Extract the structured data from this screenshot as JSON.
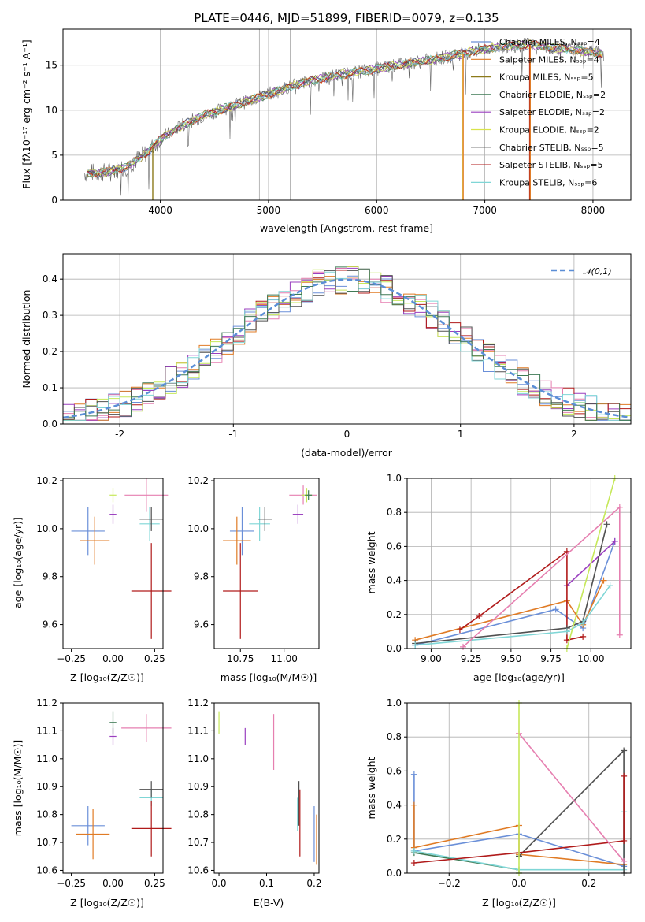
{
  "title": "PLATE=0446, MJD=51899, FIBERID=0079, z=0.135",
  "colors": {
    "Chabrier MILES": "#6a8fd8",
    "Salpeter MILES": "#e07b25",
    "Kroupa MILES": "#8c7a1a",
    "Chabrier ELODIE": "#3f7a55",
    "Salpeter ELODIE": "#9a3fbf",
    "Kroupa ELODIE": "#d9e34a",
    "Chabrier STELIB": "#505050",
    "Salpeter STELIB": "#b01a1a",
    "Kroupa STELIB": "#7fd6d6",
    "pink": "#e67fb0",
    "lime": "#c6e85a"
  },
  "chart_data": [
    {
      "type": "line",
      "id": "spectrum",
      "xlabel": "wavelength [Angstrom, rest frame]",
      "ylabel": "Flux [fλ10⁻¹⁷ erg cm⁻² s⁻¹ A⁻¹]",
      "xlim": [
        3100,
        8350
      ],
      "ylim": [
        0,
        19
      ],
      "xticks": [
        4000,
        5000,
        6000,
        7000,
        8000
      ],
      "yticks": [
        0,
        5,
        10,
        15
      ],
      "grid": true,
      "legend_position": "right",
      "series": [
        {
          "name": "Chabrier MILES, N_SSP=4",
          "color": "#6a8fd8"
        },
        {
          "name": "Salpeter MILES, N_SSP=4",
          "color": "#e07b25"
        },
        {
          "name": "Kroupa MILES, N_SSP=5",
          "color": "#8c7a1a"
        },
        {
          "name": "Chabrier ELODIE, N_SSP=2",
          "color": "#3f7a55"
        },
        {
          "name": "Salpeter ELODIE, N_SSP=2",
          "color": "#9a3fbf"
        },
        {
          "name": "Kroupa ELODIE, N_SSP=2",
          "color": "#d9e34a"
        },
        {
          "name": "Chabrier STELIB, N_SSP=5",
          "color": "#505050"
        },
        {
          "name": "Salpeter STELIB, N_SSP=5",
          "color": "#b01a1a"
        },
        {
          "name": "Kroupa STELIB, N_SSP=6",
          "color": "#7fd6d6"
        }
      ],
      "continuum": {
        "x": [
          3300,
          3500,
          3700,
          3900,
          4000,
          4200,
          4400,
          4600,
          4800,
          5000,
          5200,
          5400,
          5600,
          5800,
          6000,
          6200,
          6400,
          6600,
          6800,
          7000,
          7200,
          7400,
          7600,
          7800,
          8000,
          8100
        ],
        "y": [
          3.0,
          3.1,
          3.8,
          5.5,
          6.8,
          8.3,
          9.4,
          10.2,
          11.0,
          11.8,
          12.6,
          13.3,
          13.8,
          14.2,
          14.6,
          15.0,
          15.4,
          15.8,
          16.3,
          16.8,
          17.1,
          17.3,
          17.0,
          16.7,
          16.5,
          16.2
        ]
      }
    },
    {
      "type": "area",
      "id": "residuals",
      "xlabel": "(data-model)/error",
      "ylabel": "Normed distribution",
      "xlim": [
        -2.5,
        2.5
      ],
      "ylim": [
        0,
        0.47
      ],
      "xticks": [
        -2,
        -1,
        0,
        1,
        2
      ],
      "yticks": [
        0.0,
        0.1,
        0.2,
        0.3,
        0.4
      ],
      "grid": true,
      "legend": "𝒩(0,1)",
      "legend_position": "top-right"
    },
    {
      "type": "scatter",
      "id": "age-vs-Z",
      "xlabel": "Z [log₁₀(Z/Z☉)]",
      "ylabel": "age  [log₁₀(age/yr)]",
      "xlim": [
        -0.3,
        0.3
      ],
      "ylim": [
        9.5,
        10.21
      ],
      "xticks": [
        -0.25,
        0.0,
        0.25
      ],
      "xticklabels": [
        "−0.25",
        "0.00",
        "0.25"
      ],
      "yticks": [
        9.6,
        9.8,
        10.0,
        10.2
      ],
      "points": [
        {
          "x": -0.15,
          "y": 9.99,
          "xe": 0.1,
          "ye": 0.1,
          "color": "#6a8fd8"
        },
        {
          "x": -0.11,
          "y": 9.95,
          "xe": 0.09,
          "ye": 0.1,
          "color": "#e07b25"
        },
        {
          "x": 0.0,
          "y": 10.06,
          "xe": 0.02,
          "ye": 0.04,
          "color": "#9a3fbf"
        },
        {
          "x": 0.0,
          "y": 10.14,
          "xe": 0.02,
          "ye": 0.03,
          "color": "#c6e85a"
        },
        {
          "x": 0.22,
          "y": 10.02,
          "xe": 0.06,
          "ye": 0.07,
          "color": "#7fd6d6"
        },
        {
          "x": 0.23,
          "y": 10.04,
          "xe": 0.07,
          "ye": 0.05,
          "color": "#505050"
        },
        {
          "x": 0.23,
          "y": 9.74,
          "xe": 0.12,
          "ye": 0.2,
          "color": "#b01a1a"
        },
        {
          "x": 0.2,
          "y": 10.14,
          "xe": 0.13,
          "ye": 0.07,
          "color": "#e67fb0"
        }
      ]
    },
    {
      "type": "scatter",
      "id": "age-vs-mass",
      "xlabel": "mass [log₁₀(M/M☉)]",
      "xlim": [
        10.6,
        11.2
      ],
      "ylim": [
        9.5,
        10.21
      ],
      "xticks": [
        10.75,
        11.0
      ],
      "xticklabels": [
        "10.75",
        "11.00"
      ],
      "yticks": [
        9.6,
        9.8,
        10.0,
        10.2
      ],
      "points": [
        {
          "x": 10.76,
          "y": 9.99,
          "xe": 0.07,
          "ye": 0.1,
          "color": "#6a8fd8"
        },
        {
          "x": 10.73,
          "y": 9.95,
          "xe": 0.08,
          "ye": 0.1,
          "color": "#e07b25"
        },
        {
          "x": 10.86,
          "y": 10.02,
          "xe": 0.06,
          "ye": 0.07,
          "color": "#7fd6d6"
        },
        {
          "x": 10.89,
          "y": 10.04,
          "xe": 0.04,
          "ye": 0.05,
          "color": "#505050"
        },
        {
          "x": 10.75,
          "y": 9.74,
          "xe": 0.1,
          "ye": 0.2,
          "color": "#b01a1a"
        },
        {
          "x": 11.08,
          "y": 10.06,
          "xe": 0.03,
          "ye": 0.04,
          "color": "#9a3fbf"
        },
        {
          "x": 11.11,
          "y": 10.14,
          "xe": 0.08,
          "ye": 0.04,
          "color": "#e67fb0"
        },
        {
          "x": 11.13,
          "y": 10.14,
          "xe": 0.03,
          "ye": 0.03,
          "color": "#c6e85a"
        },
        {
          "x": 11.14,
          "y": 10.14,
          "xe": 0.02,
          "ye": 0.02,
          "color": "#3f7a55"
        }
      ]
    },
    {
      "type": "line",
      "id": "weight-vs-age",
      "xlabel": "age  [log₁₀(age/yr)]",
      "ylabel": "mass weight",
      "xlim": [
        8.85,
        10.25
      ],
      "ylim": [
        0,
        1.0
      ],
      "xticks": [
        9.0,
        9.25,
        9.5,
        9.75,
        10.0
      ],
      "xticklabels": [
        "9.00",
        "9.25",
        "9.50",
        "9.75",
        "10.00"
      ],
      "yticks": [
        0.0,
        0.2,
        0.4,
        0.6,
        0.8,
        1.0
      ],
      "grid": true,
      "series": [
        {
          "color": "#6a8fd8",
          "x": [
            8.9,
            9.78,
            9.95,
            10.15
          ],
          "y": [
            0.02,
            0.23,
            0.12,
            0.63
          ]
        },
        {
          "color": "#e07b25",
          "x": [
            8.9,
            9.85,
            9.95,
            10.08
          ],
          "y": [
            0.05,
            0.28,
            0.14,
            0.4
          ]
        },
        {
          "color": "#9a3fbf",
          "x": [
            9.85,
            10.15
          ],
          "y": [
            0.37,
            0.63
          ]
        },
        {
          "color": "#b01a1a",
          "x": [
            9.18,
            9.3,
            9.85,
            9.85,
            9.95
          ],
          "y": [
            0.11,
            0.19,
            0.57,
            0.05,
            0.07
          ]
        },
        {
          "color": "#505050",
          "x": [
            8.9,
            9.85,
            9.95,
            10.1
          ],
          "y": [
            0.03,
            0.12,
            0.16,
            0.73
          ]
        },
        {
          "color": "#7fd6d6",
          "x": [
            8.9,
            9.85,
            9.95,
            10.12
          ],
          "y": [
            0.02,
            0.1,
            0.15,
            0.37
          ]
        },
        {
          "color": "#e67fb0",
          "x": [
            9.2,
            10.18,
            10.18
          ],
          "y": [
            0.01,
            0.83,
            0.08
          ]
        },
        {
          "color": "#c6e85a",
          "x": [
            9.85,
            10.15
          ],
          "y": [
            0.0,
            1.0
          ]
        }
      ]
    },
    {
      "type": "scatter",
      "id": "mass-vs-Z",
      "xlabel": "Z [log₁₀(Z/Z☉)]",
      "ylabel": "mass [log₁₀(M/M☉)]",
      "xlim": [
        -0.3,
        0.3
      ],
      "ylim": [
        10.59,
        11.2
      ],
      "xticks": [
        -0.25,
        0.0,
        0.25
      ],
      "xticklabels": [
        "−0.25",
        "0.00",
        "0.25"
      ],
      "yticks": [
        10.6,
        10.7,
        10.8,
        10.9,
        11.0,
        11.1,
        11.2
      ],
      "points": [
        {
          "x": -0.15,
          "y": 10.76,
          "xe": 0.1,
          "ye": 0.07,
          "color": "#6a8fd8"
        },
        {
          "x": -0.12,
          "y": 10.73,
          "xe": 0.1,
          "ye": 0.09,
          "color": "#e07b25"
        },
        {
          "x": 0.0,
          "y": 11.08,
          "xe": 0.02,
          "ye": 0.03,
          "color": "#9a3fbf"
        },
        {
          "x": 0.0,
          "y": 11.13,
          "xe": 0.02,
          "ye": 0.04,
          "color": "#3f7a55"
        },
        {
          "x": 0.2,
          "y": 11.11,
          "xe": 0.15,
          "ye": 0.05,
          "color": "#e67fb0"
        },
        {
          "x": 0.23,
          "y": 10.86,
          "xe": 0.07,
          "ye": 0.03,
          "color": "#7fd6d6"
        },
        {
          "x": 0.23,
          "y": 10.89,
          "xe": 0.07,
          "ye": 0.03,
          "color": "#505050"
        },
        {
          "x": 0.23,
          "y": 10.75,
          "xe": 0.12,
          "ye": 0.1,
          "color": "#b01a1a"
        }
      ]
    },
    {
      "type": "scatter",
      "id": "mass-vs-EBV",
      "xlabel": "E(B-V)",
      "xlim": [
        -0.01,
        0.21
      ],
      "ylim": [
        10.59,
        11.2
      ],
      "xticks": [
        0.0,
        0.1,
        0.2
      ],
      "xticklabels": [
        "0.0",
        "0.1",
        "0.2"
      ],
      "yticks": [
        10.6,
        10.7,
        10.8,
        10.9,
        11.0,
        11.1,
        11.2
      ],
      "points": [
        {
          "x": 0.0,
          "y": 11.13,
          "ye": 0.04,
          "color": "#c6e85a"
        },
        {
          "x": 0.055,
          "y": 11.08,
          "ye": 0.03,
          "color": "#9a3fbf"
        },
        {
          "x": 0.115,
          "y": 11.06,
          "ye": 0.1,
          "color": "#e67fb0"
        },
        {
          "x": 0.165,
          "y": 10.8,
          "ye": 0.06,
          "color": "#7fd6d6"
        },
        {
          "x": 0.168,
          "y": 10.84,
          "ye": 0.08,
          "color": "#505050"
        },
        {
          "x": 0.17,
          "y": 10.77,
          "ye": 0.12,
          "color": "#b01a1a"
        },
        {
          "x": 0.2,
          "y": 10.73,
          "ye": 0.1,
          "color": "#6a8fd8"
        },
        {
          "x": 0.205,
          "y": 10.71,
          "ye": 0.09,
          "color": "#e07b25"
        }
      ]
    },
    {
      "type": "line",
      "id": "weight-vs-Z",
      "xlabel": "Z [log₁₀(Z/Z☉)]",
      "ylabel": "mass weight",
      "xlim": [
        -0.32,
        0.32
      ],
      "ylim": [
        0,
        1.0
      ],
      "xticks": [
        -0.2,
        0.0,
        0.2
      ],
      "xticklabels": [
        "−0.2",
        "0.0",
        "0.2"
      ],
      "yticks": [
        0.0,
        0.2,
        0.4,
        0.6,
        0.8,
        1.0
      ],
      "grid": true,
      "series": [
        {
          "color": "#6a8fd8",
          "x": [
            -0.3,
            -0.3,
            0.0,
            0.3
          ],
          "y": [
            0.58,
            0.13,
            0.23,
            0.04
          ]
        },
        {
          "color": "#e07b25",
          "x": [
            -0.3,
            -0.3,
            0.0,
            0.0,
            0.3
          ],
          "y": [
            0.4,
            0.15,
            0.28,
            0.11,
            0.05
          ]
        },
        {
          "color": "#3f7a55",
          "x": [
            -0.3,
            0.0,
            0.0
          ],
          "y": [
            0.12,
            0.02,
            0.0
          ]
        },
        {
          "color": "#7fd6d6",
          "x": [
            -0.3,
            0.0,
            0.3,
            0.3
          ],
          "y": [
            0.13,
            0.02,
            0.02,
            0.36
          ]
        },
        {
          "color": "#505050",
          "x": [
            0.0,
            0.3,
            0.3
          ],
          "y": [
            0.1,
            0.72,
            0.0
          ]
        },
        {
          "color": "#b01a1a",
          "x": [
            -0.3,
            0.0,
            0.3,
            0.3
          ],
          "y": [
            0.06,
            0.12,
            0.19,
            0.57
          ]
        },
        {
          "color": "#e67fb0",
          "x": [
            0.0,
            0.3
          ],
          "y": [
            0.82,
            0.07
          ]
        },
        {
          "color": "#c6e85a",
          "x": [
            0.0,
            0.0
          ],
          "y": [
            0.0,
            1.0
          ]
        }
      ]
    }
  ]
}
